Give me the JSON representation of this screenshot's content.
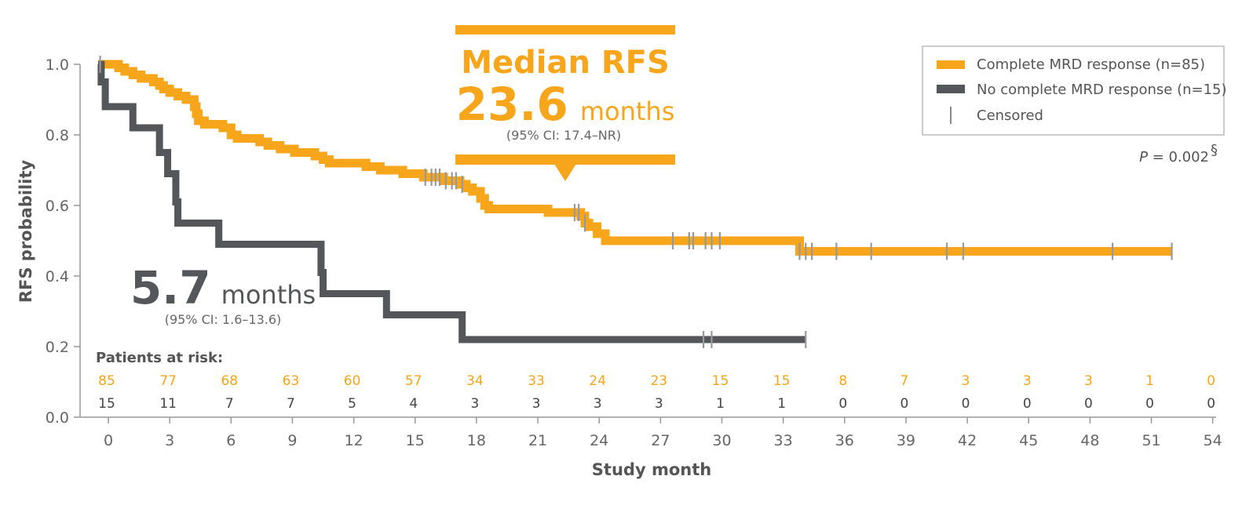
{
  "chart_data": {
    "type": "line",
    "subtype": "kaplan-meier",
    "xlabel": "Study month",
    "ylabel": "RFS probability",
    "xlim": [
      -1,
      54
    ],
    "ylim": [
      0,
      1.0
    ],
    "x_ticks": [
      "0",
      "3",
      "6",
      "9",
      "12",
      "15",
      "18",
      "21",
      "24",
      "27",
      "30",
      "33",
      "36",
      "39",
      "42",
      "45",
      "48",
      "51",
      "54"
    ],
    "y_ticks": [
      "0.0",
      "0.2",
      "0.4",
      "0.6",
      "0.8",
      "1.0"
    ],
    "grid": false,
    "legend_position": "top-right",
    "legend": [
      {
        "label": "Complete MRD response (n=85)",
        "color": "#F7A51A",
        "marker": "line"
      },
      {
        "label": "No complete MRD response (n=15)",
        "color": "#55565A",
        "marker": "line"
      },
      {
        "label": "Censored",
        "color": "#888888",
        "marker": "tick"
      }
    ],
    "series": [
      {
        "name": "Complete MRD response (n=85)",
        "color": "#F7A51A",
        "steps": [
          [
            -0.5,
            1.0
          ],
          [
            0.5,
            0.99
          ],
          [
            0.8,
            0.98
          ],
          [
            1.2,
            0.97
          ],
          [
            1.6,
            0.96
          ],
          [
            2.2,
            0.95
          ],
          [
            2.5,
            0.94
          ],
          [
            2.7,
            0.93
          ],
          [
            3.0,
            0.92
          ],
          [
            3.4,
            0.91
          ],
          [
            3.8,
            0.9
          ],
          [
            4.2,
            0.88
          ],
          [
            4.3,
            0.86
          ],
          [
            4.4,
            0.84
          ],
          [
            4.7,
            0.83
          ],
          [
            5.6,
            0.82
          ],
          [
            6.0,
            0.8
          ],
          [
            6.3,
            0.79
          ],
          [
            7.4,
            0.78
          ],
          [
            7.8,
            0.77
          ],
          [
            8.4,
            0.76
          ],
          [
            9.1,
            0.75
          ],
          [
            10.1,
            0.74
          ],
          [
            10.5,
            0.73
          ],
          [
            10.8,
            0.72
          ],
          [
            12.6,
            0.71
          ],
          [
            13.3,
            0.7
          ],
          [
            14.4,
            0.69
          ],
          [
            15.4,
            0.68
          ],
          [
            16.4,
            0.67
          ],
          [
            17.2,
            0.66
          ],
          [
            17.5,
            0.65
          ],
          [
            17.8,
            0.64
          ],
          [
            18.2,
            0.62
          ],
          [
            18.4,
            0.6
          ],
          [
            18.6,
            0.59
          ],
          [
            21.5,
            0.58
          ],
          [
            23.1,
            0.57
          ],
          [
            23.3,
            0.55
          ],
          [
            23.5,
            0.54
          ],
          [
            23.9,
            0.52
          ],
          [
            24.3,
            0.5
          ],
          [
            33.8,
            0.47
          ],
          [
            52.0,
            0.47
          ]
        ],
        "censored": [
          15.5,
          15.8,
          16.0,
          16.2,
          16.5,
          16.8,
          17.0,
          17.3,
          22.8,
          23.0,
          23.3,
          27.6,
          28.4,
          28.6,
          29.2,
          29.5,
          29.9,
          33.8,
          34.1,
          34.4,
          35.6,
          37.3,
          41.0,
          41.8,
          49.1,
          52.0
        ]
      },
      {
        "name": "No complete MRD response (n=15)",
        "color": "#55565A",
        "steps": [
          [
            -0.5,
            1.0
          ],
          [
            -0.35,
            0.95
          ],
          [
            -0.15,
            0.88
          ],
          [
            1.2,
            0.82
          ],
          [
            2.5,
            0.75
          ],
          [
            2.9,
            0.69
          ],
          [
            3.3,
            0.61
          ],
          [
            3.4,
            0.55
          ],
          [
            5.4,
            0.49
          ],
          [
            10.4,
            0.41
          ],
          [
            10.5,
            0.35
          ],
          [
            13.6,
            0.29
          ],
          [
            17.3,
            0.22
          ],
          [
            34.1,
            0.22
          ]
        ],
        "censored": [
          -0.4,
          29.1,
          29.5,
          34.1
        ]
      }
    ],
    "patients_at_risk": {
      "title": "Patients at risk:",
      "x": [
        0,
        3,
        6,
        9,
        12,
        15,
        18,
        21,
        24,
        27,
        30,
        33,
        36,
        39,
        42,
        45,
        48,
        51,
        54
      ],
      "complete": [
        "85",
        "77",
        "68",
        "63",
        "60",
        "57",
        "34",
        "33",
        "24",
        "23",
        "15",
        "15",
        "8",
        "7",
        "3",
        "3",
        "3",
        "1",
        "0"
      ],
      "no_complete": [
        "15",
        "11",
        "7",
        "7",
        "5",
        "4",
        "3",
        "3",
        "3",
        "3",
        "1",
        "1",
        "0",
        "0",
        "0",
        "0",
        "0",
        "0",
        "0"
      ]
    },
    "annotations": {
      "complete_median": {
        "title": "Median RFS",
        "value": "23.6",
        "unit": "months",
        "ci": "(95% CI: 17.4–NR)"
      },
      "no_complete_median": {
        "value": "5.7",
        "unit": "months",
        "ci": "(95% CI: 1.6–13.6)"
      },
      "p_value": {
        "label": "P",
        "text": " = 0.002",
        "superscript": "§"
      }
    }
  }
}
